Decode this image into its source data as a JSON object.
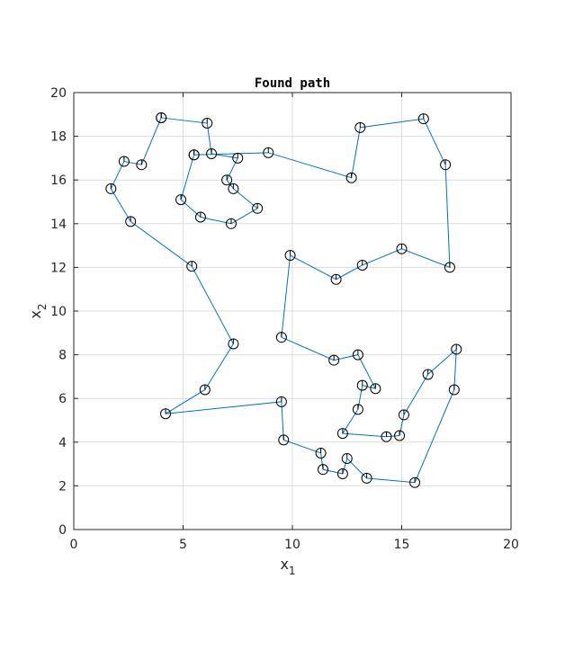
{
  "chart_data": {
    "type": "line",
    "title": "Found path",
    "xlabel": {
      "base": "x",
      "sub": "1"
    },
    "ylabel": {
      "base": "x",
      "sub": "2"
    },
    "xlim": [
      0,
      20
    ],
    "ylim": [
      0,
      20
    ],
    "xticks": [
      "0",
      "5",
      "10",
      "15",
      "20"
    ],
    "yticks": [
      "0",
      "2",
      "4",
      "6",
      "8",
      "10",
      "12",
      "14",
      "16",
      "18",
      "20"
    ],
    "grid": true,
    "line_color": "#0072BD",
    "marker": "open-circle-with-tick",
    "marker_color": "#000000",
    "series": [
      {
        "points": [
          [
            4.0,
            18.85
          ],
          [
            6.1,
            18.6
          ],
          [
            6.3,
            17.2
          ],
          [
            7.5,
            17.0
          ],
          [
            7.0,
            16.0
          ],
          [
            7.3,
            15.6
          ],
          [
            8.4,
            14.7
          ],
          [
            7.2,
            14.0
          ],
          [
            5.8,
            14.3
          ],
          [
            4.9,
            15.1
          ],
          [
            5.5,
            17.15
          ],
          [
            5.5,
            17.15
          ],
          [
            8.9,
            17.25
          ],
          [
            12.7,
            16.1
          ],
          [
            13.1,
            18.4
          ],
          [
            16.0,
            18.8
          ],
          [
            17.0,
            16.7
          ],
          [
            17.2,
            12.0
          ],
          [
            15.0,
            12.85
          ],
          [
            13.2,
            12.1
          ],
          [
            12.0,
            11.45
          ],
          [
            9.9,
            12.55
          ],
          [
            9.5,
            8.8
          ],
          [
            11.9,
            7.75
          ],
          [
            13.0,
            8.0
          ],
          [
            13.8,
            6.45
          ],
          [
            13.2,
            6.6
          ],
          [
            13.0,
            5.5
          ],
          [
            12.3,
            4.4
          ],
          [
            14.3,
            4.25
          ],
          [
            14.9,
            4.3
          ],
          [
            15.1,
            5.25
          ],
          [
            16.2,
            7.1
          ],
          [
            17.5,
            8.25
          ],
          [
            17.4,
            6.4
          ],
          [
            15.6,
            2.15
          ],
          [
            13.4,
            2.35
          ],
          [
            12.5,
            3.25
          ],
          [
            12.3,
            2.55
          ],
          [
            11.4,
            2.75
          ],
          [
            11.3,
            3.5
          ],
          [
            9.6,
            4.1
          ],
          [
            9.5,
            5.85
          ],
          [
            4.2,
            5.3
          ],
          [
            6.0,
            6.4
          ],
          [
            7.3,
            8.5
          ],
          [
            5.4,
            12.05
          ],
          [
            2.6,
            14.1
          ],
          [
            1.7,
            15.6
          ],
          [
            2.3,
            16.85
          ],
          [
            3.1,
            16.7
          ],
          [
            4.0,
            18.85
          ]
        ]
      }
    ]
  }
}
